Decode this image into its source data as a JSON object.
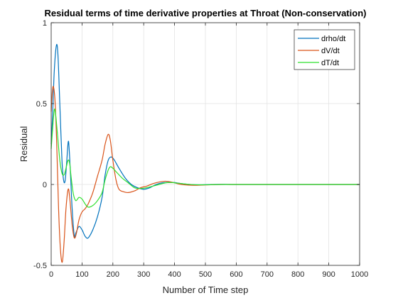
{
  "chart_data": {
    "type": "line",
    "title": "Residual terms of time derivative properties at Throat (Non-conservation)",
    "xlabel": "Number of Time step",
    "ylabel": "Residual",
    "xlim": [
      0,
      1000
    ],
    "ylim": [
      -0.5,
      1
    ],
    "xticks": [
      0,
      100,
      200,
      300,
      400,
      500,
      600,
      700,
      800,
      900,
      1000
    ],
    "yticks": [
      -0.5,
      0,
      0.5,
      1
    ],
    "ytick_labels": [
      "-0.5",
      "0",
      "0.5",
      "1"
    ],
    "grid": true,
    "legend_position": "top-right",
    "series": [
      {
        "name": "drho/dt",
        "color": "#0072BD",
        "points": [
          [
            0,
            0.25
          ],
          [
            5,
            0.45
          ],
          [
            10,
            0.7
          ],
          [
            17,
            0.86
          ],
          [
            22,
            0.8
          ],
          [
            28,
            0.5
          ],
          [
            35,
            0.15
          ],
          [
            40,
            0.03
          ],
          [
            45,
            0.02
          ],
          [
            50,
            0.13
          ],
          [
            55,
            0.26
          ],
          [
            58,
            0.23
          ],
          [
            63,
            0.05
          ],
          [
            68,
            -0.15
          ],
          [
            75,
            -0.32
          ],
          [
            80,
            -0.3
          ],
          [
            90,
            -0.26
          ],
          [
            100,
            -0.28
          ],
          [
            110,
            -0.32
          ],
          [
            120,
            -0.33
          ],
          [
            135,
            -0.28
          ],
          [
            150,
            -0.2
          ],
          [
            165,
            -0.08
          ],
          [
            175,
            0.06
          ],
          [
            185,
            0.15
          ],
          [
            195,
            0.17
          ],
          [
            205,
            0.15
          ],
          [
            220,
            0.1
          ],
          [
            240,
            0.04
          ],
          [
            260,
            0
          ],
          [
            280,
            -0.02
          ],
          [
            300,
            -0.03
          ],
          [
            320,
            -0.02
          ],
          [
            340,
            0
          ],
          [
            360,
            0.01
          ],
          [
            380,
            0.013
          ],
          [
            400,
            0.012
          ],
          [
            420,
            0.006
          ],
          [
            450,
            0
          ],
          [
            480,
            -0.002
          ],
          [
            520,
            0
          ],
          [
            560,
            0.001
          ],
          [
            600,
            0
          ],
          [
            700,
            0
          ],
          [
            800,
            0
          ],
          [
            900,
            0
          ],
          [
            1000,
            0
          ]
        ]
      },
      {
        "name": "dV/dt",
        "color": "#D95319",
        "points": [
          [
            0,
            0.45
          ],
          [
            4,
            0.58
          ],
          [
            8,
            0.6
          ],
          [
            13,
            0.5
          ],
          [
            18,
            0.25
          ],
          [
            24,
            -0.15
          ],
          [
            30,
            -0.4
          ],
          [
            36,
            -0.48
          ],
          [
            42,
            -0.35
          ],
          [
            48,
            -0.15
          ],
          [
            55,
            -0.03
          ],
          [
            60,
            -0.08
          ],
          [
            68,
            -0.25
          ],
          [
            75,
            -0.33
          ],
          [
            82,
            -0.3
          ],
          [
            90,
            -0.22
          ],
          [
            100,
            -0.17
          ],
          [
            110,
            -0.15
          ],
          [
            120,
            -0.12
          ],
          [
            135,
            -0.05
          ],
          [
            150,
            0.05
          ],
          [
            165,
            0.15
          ],
          [
            175,
            0.25
          ],
          [
            185,
            0.31
          ],
          [
            192,
            0.27
          ],
          [
            200,
            0.15
          ],
          [
            210,
            0.03
          ],
          [
            220,
            -0.03
          ],
          [
            235,
            -0.045
          ],
          [
            250,
            -0.05
          ],
          [
            270,
            -0.04
          ],
          [
            290,
            -0.02
          ],
          [
            310,
            -0.01
          ],
          [
            330,
            0.005
          ],
          [
            350,
            0.015
          ],
          [
            370,
            0.02
          ],
          [
            390,
            0.015
          ],
          [
            410,
            0.005
          ],
          [
            430,
            -0.002
          ],
          [
            460,
            -0.005
          ],
          [
            500,
            -0.003
          ],
          [
            550,
            0
          ],
          [
            600,
            0
          ],
          [
            700,
            0
          ],
          [
            800,
            0
          ],
          [
            900,
            0
          ],
          [
            1000,
            0
          ]
        ]
      },
      {
        "name": "dT/dt",
        "color": "#2FE02F",
        "points": [
          [
            0,
            0.22
          ],
          [
            5,
            0.35
          ],
          [
            10,
            0.46
          ],
          [
            14,
            0.44
          ],
          [
            20,
            0.32
          ],
          [
            28,
            0.15
          ],
          [
            35,
            0.07
          ],
          [
            42,
            0.06
          ],
          [
            48,
            0.1
          ],
          [
            55,
            0.15
          ],
          [
            60,
            0.13
          ],
          [
            65,
            0.04
          ],
          [
            72,
            -0.06
          ],
          [
            80,
            -0.1
          ],
          [
            90,
            -0.08
          ],
          [
            100,
            -0.09
          ],
          [
            110,
            -0.12
          ],
          [
            120,
            -0.14
          ],
          [
            135,
            -0.13
          ],
          [
            150,
            -0.1
          ],
          [
            165,
            -0.05
          ],
          [
            175,
            0.03
          ],
          [
            185,
            0.09
          ],
          [
            192,
            0.11
          ],
          [
            200,
            0.1
          ],
          [
            210,
            0.08
          ],
          [
            230,
            0.04
          ],
          [
            250,
            0.01
          ],
          [
            270,
            -0.02
          ],
          [
            290,
            -0.025
          ],
          [
            310,
            -0.02
          ],
          [
            330,
            -0.01
          ],
          [
            350,
            0
          ],
          [
            370,
            0.01
          ],
          [
            390,
            0.012
          ],
          [
            410,
            0.008
          ],
          [
            440,
            0.002
          ],
          [
            470,
            -0.002
          ],
          [
            500,
            -0.002
          ],
          [
            550,
            0
          ],
          [
            600,
            0
          ],
          [
            700,
            0
          ],
          [
            800,
            0
          ],
          [
            900,
            0
          ],
          [
            1000,
            0
          ]
        ]
      }
    ]
  }
}
